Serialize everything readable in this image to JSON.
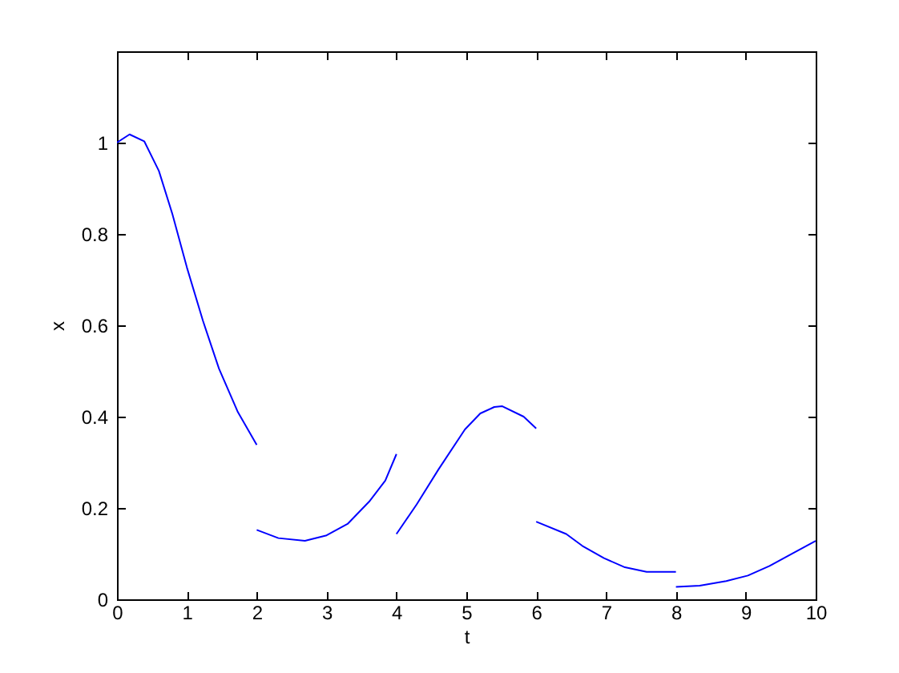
{
  "chart_data": {
    "type": "line",
    "xlabel": "t",
    "ylabel": "x",
    "xlim": [
      0,
      10
    ],
    "ylim": [
      0,
      1.2
    ],
    "xticks": [
      0,
      1,
      2,
      3,
      4,
      5,
      6,
      7,
      8,
      9,
      10
    ],
    "yticks": [
      0,
      0.2,
      0.4,
      0.6,
      0.8,
      1
    ],
    "grid": false,
    "series": [
      {
        "color": "#0000ff",
        "x": [
          0,
          0.18,
          0.39,
          0.6,
          0.79,
          1.0,
          1.23,
          1.46,
          1.73,
          2.0
        ],
        "values": [
          1.0,
          1.018,
          1.003,
          0.938,
          0.845,
          0.727,
          0.61,
          0.505,
          0.41,
          0.338
        ]
      },
      {
        "color": "#0000ff",
        "x": [
          2.0,
          2.31,
          2.69,
          3.0,
          3.3,
          3.61,
          3.84,
          4.0
        ],
        "values": [
          0.152,
          0.134,
          0.128,
          0.14,
          0.165,
          0.214,
          0.26,
          0.318
        ]
      },
      {
        "color": "#0000ff",
        "x": [
          4.0,
          4.29,
          4.6,
          4.98,
          5.2,
          5.4,
          5.51,
          5.82,
          6.0
        ],
        "values": [
          0.143,
          0.208,
          0.284,
          0.372,
          0.407,
          0.421,
          0.423,
          0.4,
          0.374
        ]
      },
      {
        "color": "#0000ff",
        "x": [
          6.0,
          6.43,
          6.66,
          6.97,
          7.27,
          7.58,
          8.0
        ],
        "values": [
          0.17,
          0.143,
          0.117,
          0.09,
          0.07,
          0.06,
          0.06
        ]
      },
      {
        "color": "#0000ff",
        "x": [
          8.0,
          8.34,
          8.72,
          9.03,
          9.34,
          9.64,
          10.0
        ],
        "values": [
          0.027,
          0.03,
          0.04,
          0.052,
          0.073,
          0.098,
          0.128
        ]
      }
    ]
  }
}
